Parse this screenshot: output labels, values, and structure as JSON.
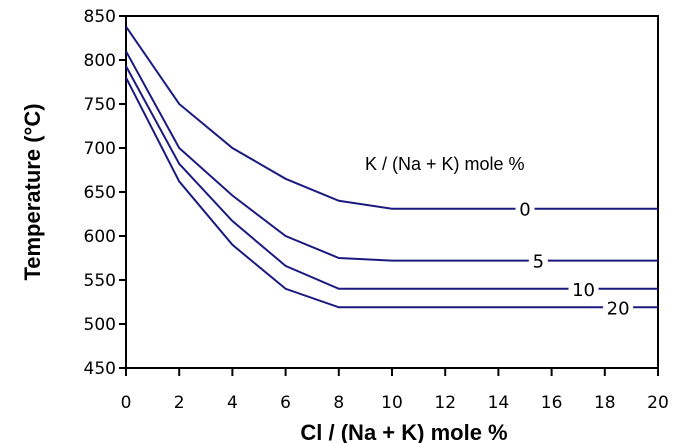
{
  "chart_data": {
    "type": "line",
    "title": "",
    "xlabel": "Cl / (Na + K) mole %",
    "ylabel": "Temperature (°C)",
    "xlim": [
      0,
      20
    ],
    "ylim": [
      450,
      850
    ],
    "xticks": [
      "0",
      "2",
      "4",
      "6",
      "8",
      "10",
      "12",
      "14",
      "16",
      "18",
      "20"
    ],
    "yticks": [
      "450",
      "500",
      "550",
      "600",
      "650",
      "700",
      "750",
      "800",
      "850"
    ],
    "grid": false,
    "legend_title": "K / (Na + K) mole %",
    "series": [
      {
        "name": "0",
        "x": [
          0,
          2,
          4,
          6,
          8,
          10,
          20
        ],
        "y": [
          838,
          750,
          700,
          665,
          640,
          631,
          631
        ]
      },
      {
        "name": "5",
        "x": [
          0,
          2,
          4,
          6,
          8,
          10,
          20
        ],
        "y": [
          810,
          700,
          646,
          600,
          575,
          572,
          572
        ]
      },
      {
        "name": "10",
        "x": [
          0,
          2,
          4,
          6,
          8,
          10,
          20
        ],
        "y": [
          793,
          682,
          617,
          566,
          540,
          540,
          540
        ]
      },
      {
        "name": "20",
        "x": [
          0,
          2,
          4,
          6,
          8,
          10,
          20
        ],
        "y": [
          780,
          662,
          590,
          540,
          519,
          519,
          519
        ]
      }
    ],
    "colors": {
      "line": "#1a1a80",
      "axis": "#000000"
    }
  }
}
